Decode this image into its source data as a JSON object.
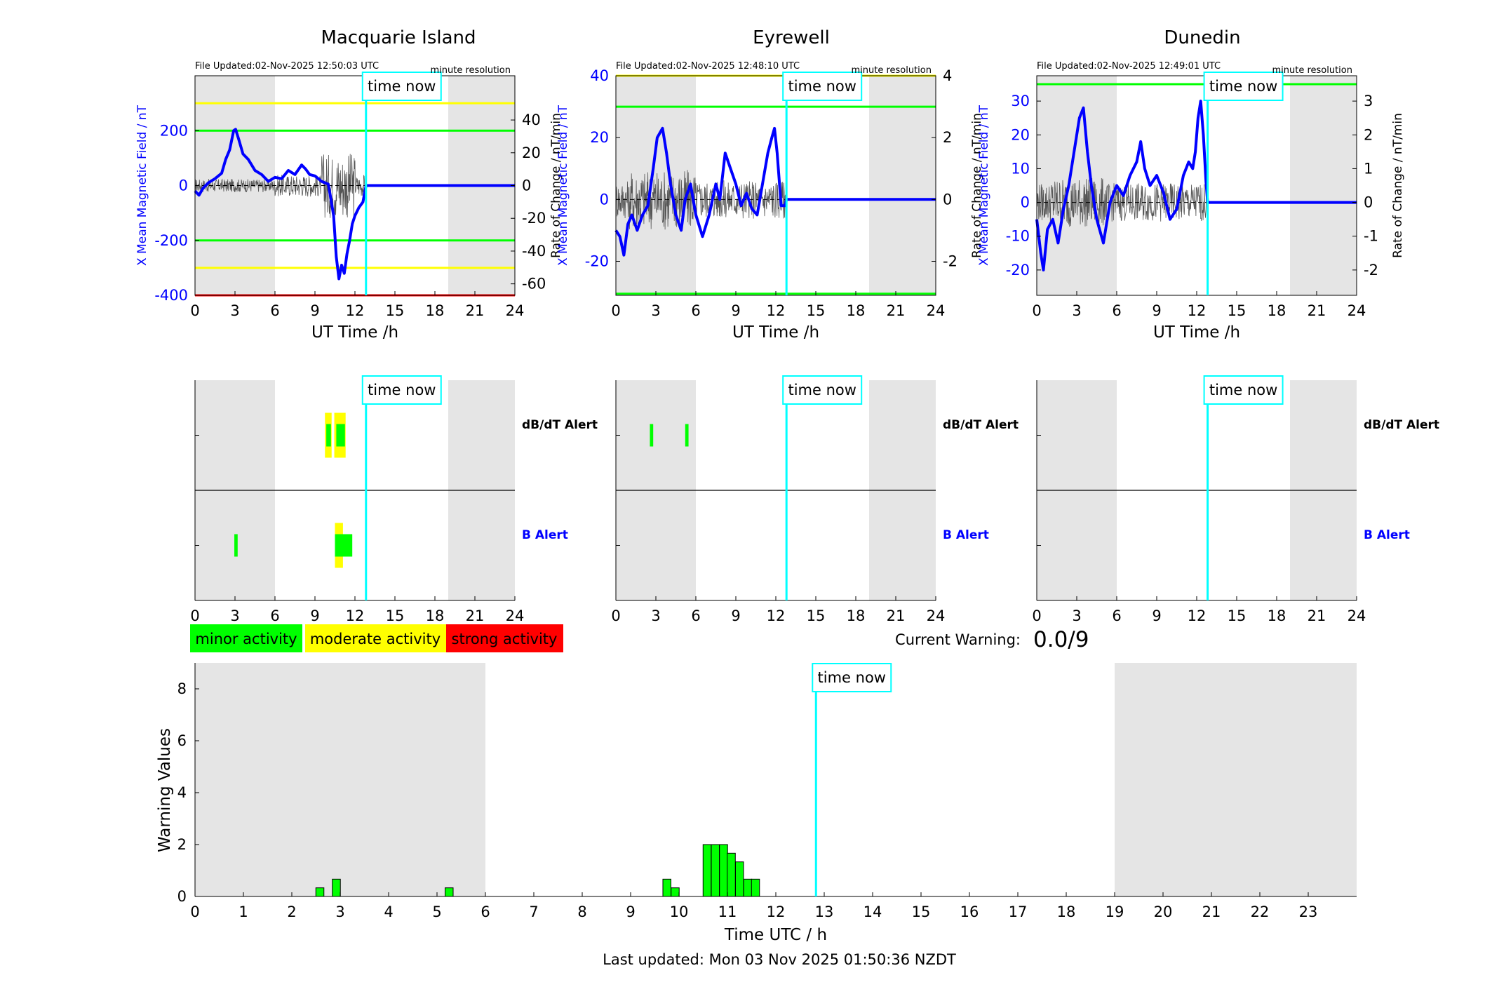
{
  "colors": {
    "night_shade": "#e5e5e5",
    "field_line": "#0000ff",
    "rate_line": "#555555",
    "minor": "#00ff00",
    "moderate": "#ffff00",
    "strong": "#ff0000",
    "time_now": "#00ffff"
  },
  "chart_data": [
    {
      "type": "line",
      "title": "Macquarie Island",
      "file_updated": "File Updated:02-Nov-2025 12:50:03 UTC",
      "resolution": "minute resolution",
      "xlabel": "UT Time /h",
      "ylabel_left": "X Mean Magnetic Field / nT",
      "ylabel_right": "Rate of Change / nT/min",
      "xlim": [
        0,
        24
      ],
      "ylim_left": [
        -400,
        400
      ],
      "ylim_right": [
        -67,
        67
      ],
      "x_ticks": [
        "0",
        "3",
        "6",
        "9",
        "12",
        "15",
        "18",
        "21",
        "24"
      ],
      "y_ticks_left": [
        "-400",
        "-200",
        "0",
        "200"
      ],
      "y_ticks_right": [
        "-60",
        "-40",
        "-20",
        "0",
        "20",
        "40"
      ],
      "night_shading": [
        [
          0,
          6
        ],
        [
          19,
          24
        ]
      ],
      "time_now": 12.83,
      "time_now_label": "time now",
      "threshold_lines": [
        {
          "value": 300,
          "color": "yellow"
        },
        {
          "value": 200,
          "color": "green"
        },
        {
          "value": -200,
          "color": "green"
        },
        {
          "value": -300,
          "color": "yellow"
        },
        {
          "value": -400,
          "color": "red"
        }
      ],
      "series": [
        {
          "x": [
            0,
            0.3,
            0.6,
            1,
            1.5,
            2,
            2.3,
            2.6,
            2.9,
            3.05,
            3.3,
            3.6,
            4,
            4.5,
            5,
            5.5,
            6,
            6.5,
            7,
            7.5,
            8,
            8.3,
            8.6,
            9,
            9.5,
            10,
            10.2,
            10.4,
            10.6,
            10.8,
            11,
            11.2,
            11.4,
            11.6,
            11.8,
            12,
            12.3,
            12.6,
            12.83,
            13,
            15,
            18,
            21,
            24
          ],
          "values": [
            -20,
            -35,
            -10,
            10,
            25,
            45,
            95,
            130,
            200,
            205,
            165,
            115,
            95,
            55,
            40,
            15,
            30,
            25,
            55,
            40,
            75,
            60,
            40,
            35,
            15,
            5,
            -50,
            -110,
            -260,
            -340,
            -290,
            -320,
            -250,
            -200,
            -140,
            -110,
            -80,
            -60,
            0,
            0,
            0,
            0,
            0,
            0
          ]
        },
        {
          "x": [
            0,
            12.83
          ],
          "values": [
            0,
            0
          ],
          "axis": "right",
          "note_noise": true
        }
      ]
    },
    {
      "type": "line",
      "title": "Eyrewell",
      "file_updated": "File Updated:02-Nov-2025 12:48:10 UTC",
      "resolution": "minute resolution",
      "xlabel": "UT Time /h",
      "ylabel_left": "X Mean Magnetic Field / nT",
      "ylabel_right": "Rate of Change / nT/min",
      "xlim": [
        0,
        24
      ],
      "ylim_left": [
        -31,
        40
      ],
      "ylim_right": [
        -3.1,
        4
      ],
      "x_ticks": [
        "0",
        "3",
        "6",
        "9",
        "12",
        "15",
        "18",
        "21",
        "24"
      ],
      "y_ticks_left": [
        "-20",
        "0",
        "20",
        "40"
      ],
      "y_ticks_right": [
        "-2",
        "0",
        "2",
        "4"
      ],
      "night_shading": [
        [
          0,
          6
        ],
        [
          19,
          24
        ]
      ],
      "time_now": 12.8,
      "time_now_label": "time now",
      "threshold_lines": [
        {
          "value": 40,
          "color": "yellow"
        },
        {
          "value": 30,
          "color": "green"
        },
        {
          "value": -30.5,
          "color": "green"
        }
      ],
      "series": [
        {
          "x": [
            0,
            0.3,
            0.6,
            0.9,
            1.2,
            1.6,
            2,
            2.4,
            2.8,
            3.1,
            3.5,
            3.8,
            4.1,
            4.5,
            4.9,
            5.2,
            5.6,
            6,
            6.5,
            7,
            7.5,
            7.8,
            8.2,
            8.6,
            9,
            9.4,
            9.8,
            10.2,
            10.6,
            11,
            11.4,
            11.7,
            11.9,
            12.1,
            12.4,
            12.7,
            12.8,
            13,
            15,
            18,
            21,
            24
          ],
          "values": [
            -10,
            -12,
            -18,
            -8,
            -5,
            -10,
            -5,
            -2,
            10,
            20,
            23,
            15,
            5,
            -5,
            -10,
            0,
            5,
            -5,
            -12,
            -5,
            5,
            0,
            15,
            10,
            5,
            -2,
            2,
            -3,
            -5,
            5,
            15,
            20,
            23,
            15,
            -2,
            -2,
            0,
            0,
            0,
            0,
            0,
            0
          ]
        }
      ]
    },
    {
      "type": "line",
      "title": "Dunedin",
      "file_updated": "File Updated:02-Nov-2025 12:49:01 UTC",
      "resolution": "minute resolution",
      "xlabel": "UT Time /h",
      "ylabel_left": "X Mean Magnetic Field / nT",
      "ylabel_right": "Rate of Change / nT/min",
      "xlim": [
        0,
        24
      ],
      "ylim_left": [
        -27.5,
        37.5
      ],
      "ylim_right": [
        -2.75,
        3.75
      ],
      "x_ticks": [
        "0",
        "3",
        "6",
        "9",
        "12",
        "15",
        "18",
        "21",
        "24"
      ],
      "y_ticks_left": [
        "-20",
        "-10",
        "0",
        "10",
        "20",
        "30"
      ],
      "y_ticks_right": [
        "-2",
        "-1",
        "0",
        "1",
        "2",
        "3"
      ],
      "night_shading": [
        [
          0,
          6
        ],
        [
          19,
          24
        ]
      ],
      "time_now": 12.82,
      "time_now_label": "time now",
      "threshold_lines": [
        {
          "value": 35,
          "color": "green"
        }
      ],
      "series": [
        {
          "x": [
            0,
            0.3,
            0.5,
            0.8,
            1.2,
            1.6,
            2,
            2.4,
            2.8,
            3.2,
            3.5,
            3.8,
            4.1,
            4.5,
            5,
            5.5,
            6,
            6.5,
            7,
            7.5,
            7.8,
            8.1,
            8.5,
            9,
            9.5,
            10,
            10.5,
            11,
            11.4,
            11.7,
            11.9,
            12.1,
            12.3,
            12.5,
            12.7,
            12.82,
            13,
            15,
            18,
            21,
            24
          ],
          "values": [
            -5,
            -15,
            -20,
            -8,
            -5,
            -12,
            -2,
            5,
            15,
            25,
            28,
            15,
            5,
            -5,
            -12,
            0,
            5,
            2,
            8,
            12,
            18,
            10,
            5,
            8,
            3,
            -5,
            -2,
            8,
            12,
            10,
            15,
            25,
            30,
            20,
            6,
            0,
            0,
            0,
            0,
            0,
            0
          ]
        }
      ]
    },
    {
      "type": "bar",
      "title": "",
      "subplot": "alerts",
      "station": "Macquarie Island",
      "rows": [
        "dB/dT Alert",
        "B Alert"
      ],
      "xlim": [
        0,
        24
      ],
      "x_ticks": [
        "0",
        "3",
        "6",
        "9",
        "12",
        "15",
        "18",
        "21",
        "24"
      ],
      "night_shading": [
        [
          0,
          6
        ],
        [
          19,
          24
        ]
      ],
      "time_now": 12.83,
      "time_now_label": "time now",
      "dbdt_alert": [
        {
          "start": 9.75,
          "end": 10.25,
          "level": "moderate"
        },
        {
          "start": 9.85,
          "end": 10.2,
          "level": "minor"
        },
        {
          "start": 10.45,
          "end": 11.3,
          "level": "moderate"
        },
        {
          "start": 10.6,
          "end": 11.25,
          "level": "minor"
        }
      ],
      "b_alert": [
        {
          "start": 2.95,
          "end": 3.2,
          "level": "minor"
        },
        {
          "start": 10.5,
          "end": 11.1,
          "level": "moderate"
        },
        {
          "start": 10.5,
          "end": 11.8,
          "level": "minor"
        }
      ]
    },
    {
      "type": "bar",
      "title": "",
      "subplot": "alerts",
      "station": "Eyrewell",
      "rows": [
        "dB/dT Alert",
        "B Alert"
      ],
      "xlim": [
        0,
        24
      ],
      "x_ticks": [
        "0",
        "3",
        "6",
        "9",
        "12",
        "15",
        "18",
        "21",
        "24"
      ],
      "night_shading": [
        [
          0,
          6
        ],
        [
          19,
          24
        ]
      ],
      "time_now": 12.8,
      "time_now_label": "time now",
      "dbdt_alert": [
        {
          "start": 2.55,
          "end": 2.8,
          "level": "minor"
        },
        {
          "start": 5.2,
          "end": 5.45,
          "level": "minor"
        }
      ],
      "b_alert": []
    },
    {
      "type": "bar",
      "title": "",
      "subplot": "alerts",
      "station": "Dunedin",
      "rows": [
        "dB/dT Alert",
        "B Alert"
      ],
      "xlim": [
        0,
        24
      ],
      "x_ticks": [
        "0",
        "3",
        "6",
        "9",
        "12",
        "15",
        "18",
        "21",
        "24"
      ],
      "night_shading": [
        [
          0,
          6
        ],
        [
          19,
          24
        ]
      ],
      "time_now": 12.82,
      "time_now_label": "time now",
      "dbdt_alert": [],
      "b_alert": []
    },
    {
      "type": "bar",
      "title": "",
      "xlabel": "Time UTC / h",
      "ylabel": "Warning Values",
      "xlim": [
        0,
        24
      ],
      "ylim": [
        0,
        9
      ],
      "x_ticks": [
        "0",
        "1",
        "2",
        "3",
        "4",
        "5",
        "6",
        "7",
        "8",
        "9",
        "10",
        "11",
        "12",
        "13",
        "14",
        "15",
        "16",
        "17",
        "18",
        "19",
        "20",
        "21",
        "22",
        "23"
      ],
      "y_ticks": [
        "0",
        "2",
        "4",
        "6",
        "8"
      ],
      "night_shading": [
        [
          0,
          6
        ],
        [
          19,
          24
        ]
      ],
      "time_now": 12.83,
      "time_now_label": "time now",
      "bar_width_h": 0.1667,
      "bars": [
        {
          "x": 2.58,
          "value": 0.333
        },
        {
          "x": 2.92,
          "value": 0.667
        },
        {
          "x": 5.25,
          "value": 0.333
        },
        {
          "x": 9.75,
          "value": 0.667
        },
        {
          "x": 9.92,
          "value": 0.333
        },
        {
          "x": 10.58,
          "value": 2
        },
        {
          "x": 10.75,
          "value": 2
        },
        {
          "x": 10.92,
          "value": 2
        },
        {
          "x": 11.08,
          "value": 1.667
        },
        {
          "x": 11.25,
          "value": 1.333
        },
        {
          "x": 11.42,
          "value": 0.667
        },
        {
          "x": 11.58,
          "value": 0.667
        }
      ]
    }
  ],
  "legend": {
    "minor": "minor activity",
    "moderate": "moderate activity",
    "strong": "strong activity"
  },
  "warning": {
    "label": "Current Warning:",
    "value": "0.0/9"
  },
  "footer": {
    "last_updated": "Last updated: Mon 03 Nov 2025 01:50:36 NZDT"
  }
}
